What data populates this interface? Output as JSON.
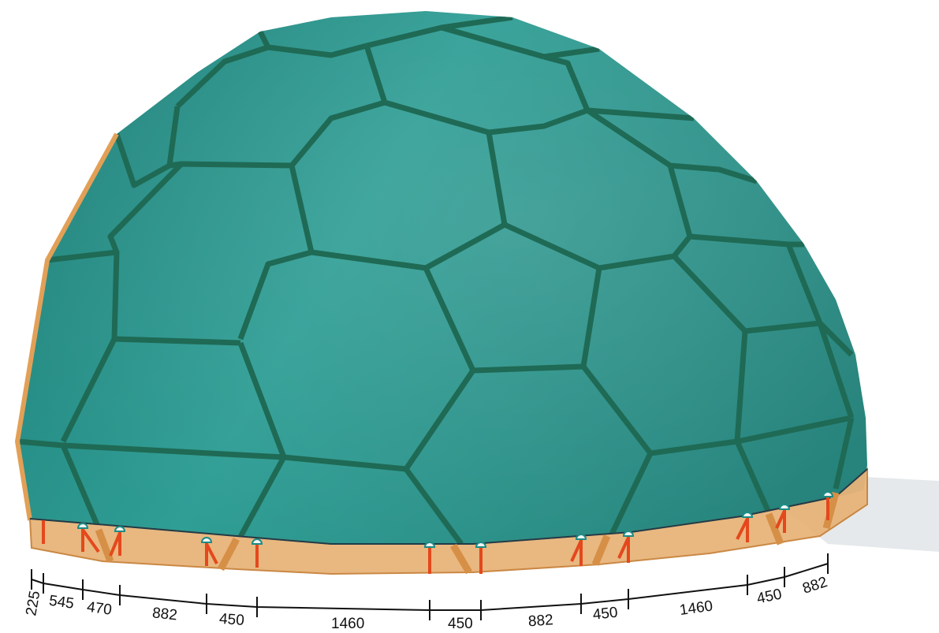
{
  "colors": {
    "panel": "#2e9b92",
    "panel_edge": "#1f6a55",
    "frame": "#e2a057",
    "strut": "#e4481c",
    "ground_shadow": "#d9dde0",
    "dimension_line": "#111111"
  },
  "dimensions": [
    "225",
    "545",
    "470",
    "882",
    "450",
    "1460",
    "450",
    "882",
    "450",
    "1460",
    "450",
    "882"
  ]
}
